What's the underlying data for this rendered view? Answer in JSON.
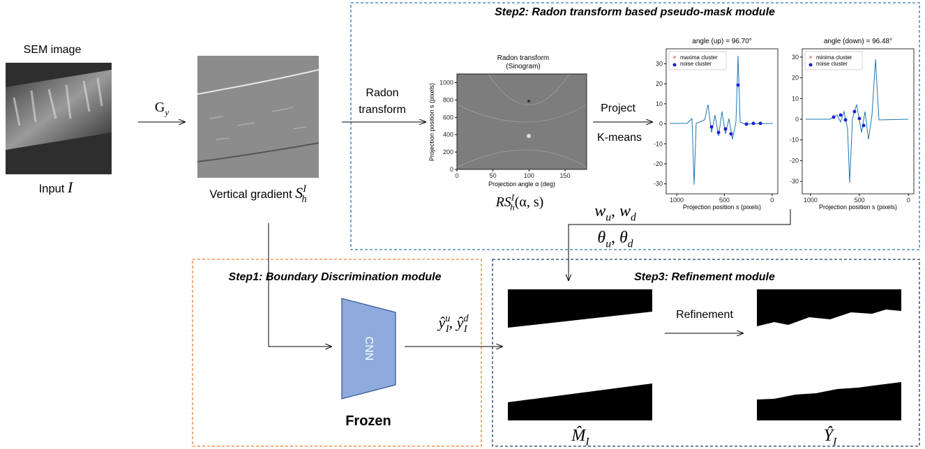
{
  "input": {
    "title": "SEM image",
    "label": "Input ",
    "symbol": [
      {
        "base": "I"
      }
    ]
  },
  "gradient_op": [
    {
      "base": "G",
      "sub": "y",
      "upright": true
    }
  ],
  "gradient": {
    "label": "Vertical gradient ",
    "symbol": [
      {
        "base": "S",
        "sub": "h",
        "sup": "I"
      }
    ]
  },
  "step2": {
    "title": "Step2: Radon transform based pseudo-mask module",
    "radon_arrow": [
      "Radon",
      "transform"
    ],
    "project_arrow": [
      "Project",
      "K-means"
    ],
    "sinogram": {
      "title": [
        "Radon transform",
        "(Sinogram)"
      ],
      "x_label": "Projection angle α (deg)",
      "y_label": "Projection position s (pixels)",
      "xlim": [
        0,
        180
      ],
      "xticks": [
        0,
        50,
        100,
        150
      ],
      "ylim": [
        0,
        1100
      ],
      "yticks": [
        0,
        200,
        400,
        600,
        800,
        1000
      ],
      "symbol": [
        {
          "base": "RS",
          "sub": "h",
          "sup": "I",
          "tail": "(α, s)"
        }
      ]
    },
    "plots": [
      {
        "title": "angle (up) = 96.70°",
        "legend": [
          "maxima cluster",
          "noise cluster"
        ],
        "x_label": "Projection position s (pixels)",
        "xlim": [
          1110,
          -60
        ],
        "xticks": [
          1000,
          500,
          0
        ],
        "ylim": [
          -35,
          37.5
        ],
        "yticks": [
          30,
          20,
          10,
          0,
          -10,
          -20,
          -30
        ]
      },
      {
        "title": "angle (down) = 96.48°",
        "legend": [
          "minima cluster",
          "noise cluster"
        ],
        "x_label": "Projection position s (pixels)",
        "xlim": [
          1085,
          -55
        ],
        "xticks": [
          1000,
          500,
          0
        ],
        "ylim": [
          -36,
          34
        ],
        "yticks": [
          30,
          20,
          10,
          0,
          -10,
          -20,
          -30
        ]
      }
    ],
    "weights": [
      {
        "base": "w",
        "sub": "u",
        "tail": ", "
      },
      {
        "base": "w",
        "sub": "d"
      }
    ],
    "angles": [
      {
        "base": "θ",
        "sub": "u",
        "tail": ", "
      },
      {
        "base": "θ",
        "sub": "d"
      }
    ]
  },
  "step1": {
    "title": "Step1: Boundary Discrimination module",
    "cnn": "CNN",
    "frozen": "Frozen",
    "output": [
      {
        "base": "ŷ",
        "sub": "I",
        "sup": "u",
        "tail": ", "
      },
      {
        "base": "ŷ",
        "sub": "I",
        "sup": "d"
      }
    ]
  },
  "step3": {
    "title": "Step3: Refinement module",
    "arrow": "Refinement",
    "mask": [
      {
        "base": "M̂",
        "sub": "I"
      }
    ],
    "result": [
      {
        "base": "Ŷ",
        "sub": "I"
      }
    ]
  }
}
